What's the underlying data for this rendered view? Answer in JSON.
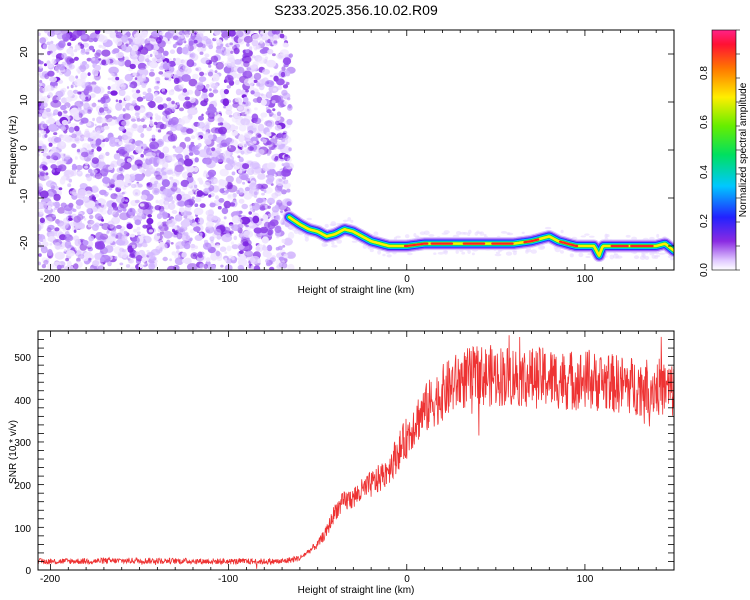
{
  "title": "S233.2025.356.10.02.R09",
  "chart_data": [
    {
      "type": "heatmap",
      "xlabel": "Height of straight line (km)",
      "ylabel": "Frequency (Hz)",
      "xlim": [
        -207,
        150
      ],
      "ylim": [
        -25,
        25
      ],
      "x_ticks": [
        "-200",
        "-100",
        "0",
        "100"
      ],
      "y_ticks": [
        "20",
        "10",
        "0",
        "-10",
        "-20"
      ],
      "noise_region_x": [
        -207,
        -66
      ],
      "colorbar": {
        "label": "Normalized spectral amplitude",
        "range": [
          0,
          1
        ],
        "ticks": [
          "0.0",
          "0.2",
          "0.4",
          "0.6",
          "0.8"
        ]
      },
      "ridge": {
        "x": [
          -66,
          -60,
          -55,
          -50,
          -45,
          -40,
          -35,
          -30,
          -25,
          -20,
          -15,
          -10,
          -5,
          0,
          10,
          20,
          30,
          40,
          50,
          60,
          70,
          75,
          80,
          85,
          90,
          95,
          100,
          105,
          108,
          110,
          115,
          120,
          130,
          140,
          145,
          150
        ],
        "y": [
          -14,
          -15.5,
          -16.5,
          -17,
          -18,
          -17.5,
          -16.5,
          -17,
          -18,
          -19,
          -19.5,
          -20,
          -20,
          -20,
          -19.5,
          -19.5,
          -19.5,
          -19.5,
          -19.5,
          -19.5,
          -19,
          -18.5,
          -18,
          -19,
          -19.5,
          -20,
          -20,
          -20,
          -22,
          -20,
          -20,
          -20,
          -20,
          -20,
          -19.5,
          -21
        ]
      }
    },
    {
      "type": "line",
      "xlabel": "Height of straight line (km)",
      "ylabel": "SNR (10 * v/v)",
      "xlim": [
        -207,
        150
      ],
      "ylim": [
        0,
        560
      ],
      "x_ticks": [
        "-200",
        "-100",
        "0",
        "100"
      ],
      "y_ticks": [
        "0",
        "100",
        "200",
        "300",
        "400",
        "500"
      ],
      "color": "#ee3333",
      "envelope": {
        "x": [
          -207,
          -150,
          -100,
          -70,
          -60,
          -50,
          -45,
          -40,
          -35,
          -30,
          -25,
          -20,
          -15,
          -10,
          -5,
          0,
          5,
          10,
          15,
          20,
          25,
          30,
          40,
          50,
          60,
          70,
          80,
          90,
          100,
          110,
          120,
          130,
          140,
          150
        ],
        "y": [
          20,
          22,
          20,
          20,
          28,
          60,
          90,
          140,
          160,
          170,
          185,
          200,
          215,
          240,
          275,
          310,
          350,
          375,
          395,
          415,
          430,
          445,
          455,
          455,
          455,
          450,
          450,
          445,
          445,
          440,
          435,
          430,
          430,
          420
        ]
      }
    }
  ]
}
